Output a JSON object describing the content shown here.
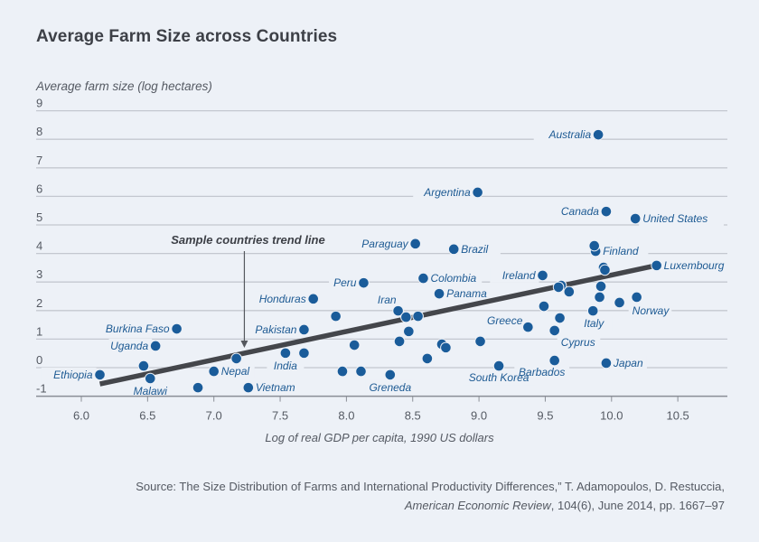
{
  "chart_data": {
    "type": "scatter",
    "title": "Average Farm Size across Countries",
    "ylabel": "Average farm size (log hectares)",
    "xlabel": "Log of real GDP per capita, 1990 US dollars",
    "xlim": [
      5.7,
      10.9
    ],
    "ylim": [
      -1,
      9
    ],
    "xticks": [
      6.0,
      6.5,
      7.0,
      7.5,
      8.0,
      8.5,
      9.0,
      9.5,
      10.0,
      10.5
    ],
    "xtick_labels": [
      "6.0",
      "6.5",
      "7.0",
      "7.5",
      "8.0",
      "8.5",
      "9.0",
      "9.5",
      "10.0",
      "10.5"
    ],
    "yticks": [
      9,
      8,
      7,
      6,
      5,
      4,
      3,
      2,
      1,
      0,
      -1
    ],
    "ytick_labels": [
      "9",
      "8",
      "7",
      "6",
      "5",
      "4",
      "3",
      "2",
      "1",
      "0",
      "-1"
    ],
    "grid": "horizontal",
    "point_color": "#1a5c9a",
    "trend_color": "#44464b",
    "trend_line": {
      "label": "Sample countries trend line",
      "x": [
        6.14,
        10.34
      ],
      "y": [
        -0.57,
        3.58
      ],
      "annotation_x": 7.23
    },
    "points": [
      {
        "name": "Australia",
        "x": 9.9,
        "y": 8.16,
        "label_side": "left"
      },
      {
        "name": "Argentina",
        "x": 8.99,
        "y": 6.14,
        "label_side": "left"
      },
      {
        "name": "Canada",
        "x": 9.96,
        "y": 5.47,
        "label_side": "left"
      },
      {
        "name": "United States",
        "x": 10.18,
        "y": 5.22,
        "label_side": "right"
      },
      {
        "name": "Paraguay",
        "x": 8.52,
        "y": 4.34,
        "label_side": "left"
      },
      {
        "name": "Brazil",
        "x": 8.81,
        "y": 4.15,
        "label_side": "right"
      },
      {
        "name": "Finland",
        "x": 9.88,
        "y": 4.08,
        "label_side": "right"
      },
      {
        "name": "Luxembourg",
        "x": 10.34,
        "y": 3.58,
        "label_side": "right"
      },
      {
        "name": "Ireland",
        "x": 9.48,
        "y": 3.23,
        "label_side": "left"
      },
      {
        "name": "Colombia",
        "x": 8.58,
        "y": 3.13,
        "label_side": "right"
      },
      {
        "name": "Peru",
        "x": 8.13,
        "y": 2.97,
        "label_side": "left"
      },
      {
        "name": "Panama",
        "x": 8.7,
        "y": 2.59,
        "label_side": "right"
      },
      {
        "name": "Honduras",
        "x": 7.75,
        "y": 2.41,
        "label_side": "left"
      },
      {
        "name": "Norway",
        "x": 10.19,
        "y": 2.47,
        "label_side": "below"
      },
      {
        "name": "Iran",
        "x": 8.39,
        "y": 1.99,
        "label_side": "above-left"
      },
      {
        "name": "Italy",
        "x": 9.86,
        "y": 1.99,
        "label_side": "below"
      },
      {
        "name": "Greece",
        "x": 9.37,
        "y": 1.42,
        "label_side": "above-left"
      },
      {
        "name": "Burkina Faso",
        "x": 6.72,
        "y": 1.36,
        "label_side": "left"
      },
      {
        "name": "Pakistan",
        "x": 7.68,
        "y": 1.33,
        "label_side": "left"
      },
      {
        "name": "Cyprus",
        "x": 9.57,
        "y": 1.3,
        "label_side": "below"
      },
      {
        "name": "Uganda",
        "x": 6.56,
        "y": 0.76,
        "label_side": "left"
      },
      {
        "name": "India",
        "x": 7.54,
        "y": 0.51,
        "label_side": "below"
      },
      {
        "name": "Barbados",
        "x": 9.57,
        "y": 0.25,
        "label_side": "below"
      },
      {
        "name": "Japan",
        "x": 9.96,
        "y": 0.16,
        "label_side": "right"
      },
      {
        "name": "South Korea",
        "x": 9.15,
        "y": 0.06,
        "label_side": "below"
      },
      {
        "name": "Nepal",
        "x": 7.0,
        "y": -0.13,
        "label_side": "right"
      },
      {
        "name": "Ethiopia",
        "x": 6.14,
        "y": -0.25,
        "label_side": "left"
      },
      {
        "name": "Greneda",
        "x": 8.33,
        "y": -0.25,
        "label_side": "below"
      },
      {
        "name": "Malawi",
        "x": 6.52,
        "y": -0.38,
        "label_side": "below"
      },
      {
        "name": "Vietnam",
        "x": 7.26,
        "y": -0.7,
        "label_side": "right"
      },
      {
        "name": "",
        "x": 9.87,
        "y": 4.27
      },
      {
        "name": "",
        "x": 9.94,
        "y": 3.51
      },
      {
        "name": "",
        "x": 9.95,
        "y": 3.42
      },
      {
        "name": "",
        "x": 9.62,
        "y": 2.88
      },
      {
        "name": "",
        "x": 9.6,
        "y": 2.82
      },
      {
        "name": "",
        "x": 9.92,
        "y": 2.85
      },
      {
        "name": "",
        "x": 9.68,
        "y": 2.66
      },
      {
        "name": "",
        "x": 9.91,
        "y": 2.47
      },
      {
        "name": "",
        "x": 10.06,
        "y": 2.28
      },
      {
        "name": "",
        "x": 9.49,
        "y": 2.15
      },
      {
        "name": "",
        "x": 9.61,
        "y": 1.74
      },
      {
        "name": "",
        "x": 7.92,
        "y": 1.8
      },
      {
        "name": "",
        "x": 8.45,
        "y": 1.77
      },
      {
        "name": "",
        "x": 8.54,
        "y": 1.8
      },
      {
        "name": "",
        "x": 8.47,
        "y": 1.27
      },
      {
        "name": "",
        "x": 8.4,
        "y": 0.92
      },
      {
        "name": "",
        "x": 9.01,
        "y": 0.92
      },
      {
        "name": "",
        "x": 8.72,
        "y": 0.82
      },
      {
        "name": "",
        "x": 8.75,
        "y": 0.7
      },
      {
        "name": "",
        "x": 8.06,
        "y": 0.79
      },
      {
        "name": "",
        "x": 7.68,
        "y": 0.51
      },
      {
        "name": "",
        "x": 8.61,
        "y": 0.32
      },
      {
        "name": "",
        "x": 7.17,
        "y": 0.32
      },
      {
        "name": "",
        "x": 6.47,
        "y": 0.06
      },
      {
        "name": "",
        "x": 7.97,
        "y": -0.13
      },
      {
        "name": "",
        "x": 8.11,
        "y": -0.13
      },
      {
        "name": "",
        "x": 6.88,
        "y": -0.7
      }
    ]
  },
  "source": {
    "line1": "Source: The Size Distribution of Farms and International Productivity Differences,” T. Adamopoulos, D. Restuccia,",
    "journal": "American Economic Review",
    "line2_rest": ", 104(6), June 2014, pp. 1667–97"
  }
}
